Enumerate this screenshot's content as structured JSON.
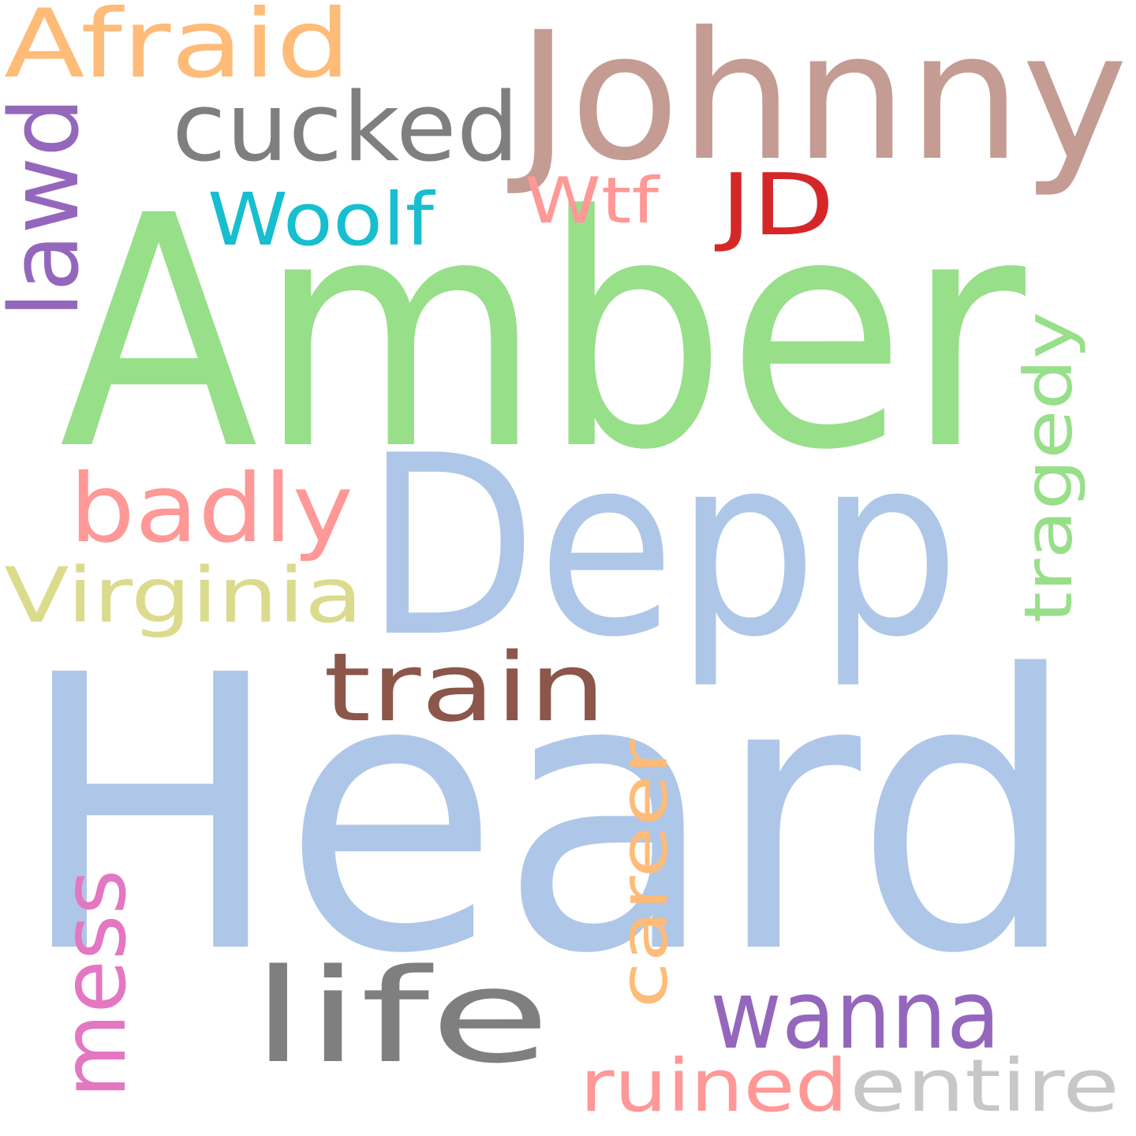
{
  "words": [
    {
      "id": "heard",
      "text": "Heard",
      "color": "#aec7e8"
    },
    {
      "id": "amber",
      "text": "Amber",
      "color": "#98df8a"
    },
    {
      "id": "depp",
      "text": "Depp",
      "color": "#aec7e8"
    },
    {
      "id": "johnny",
      "text": "Johnny",
      "color": "#c49c94"
    },
    {
      "id": "afraid",
      "text": "Afraid",
      "color": "#ffbb78"
    },
    {
      "id": "cucked",
      "text": "cucked",
      "color": "#7f7f7f"
    },
    {
      "id": "lawd",
      "text": "lawd",
      "color": "#9467bd"
    },
    {
      "id": "woolf",
      "text": "Woolf",
      "color": "#17becf"
    },
    {
      "id": "wtf",
      "text": "Wtf",
      "color": "#ff9896"
    },
    {
      "id": "jd",
      "text": "JD",
      "color": "#d62728"
    },
    {
      "id": "tragedy",
      "text": "tragedy",
      "color": "#98df8a"
    },
    {
      "id": "badly",
      "text": "badly",
      "color": "#ff9896"
    },
    {
      "id": "virginia",
      "text": "Virginia",
      "color": "#dbdb8d"
    },
    {
      "id": "train",
      "text": "train",
      "color": "#8c564b"
    },
    {
      "id": "career",
      "text": "career",
      "color": "#ffbb78"
    },
    {
      "id": "mess",
      "text": "mess",
      "color": "#e377c2"
    },
    {
      "id": "life",
      "text": "life",
      "color": "#7f7f7f"
    },
    {
      "id": "wanna",
      "text": "wanna",
      "color": "#9467bd"
    },
    {
      "id": "ruined",
      "text": "ruined",
      "color": "#ff9896"
    },
    {
      "id": "entire",
      "text": "entire",
      "color": "#c7c7c7"
    }
  ]
}
